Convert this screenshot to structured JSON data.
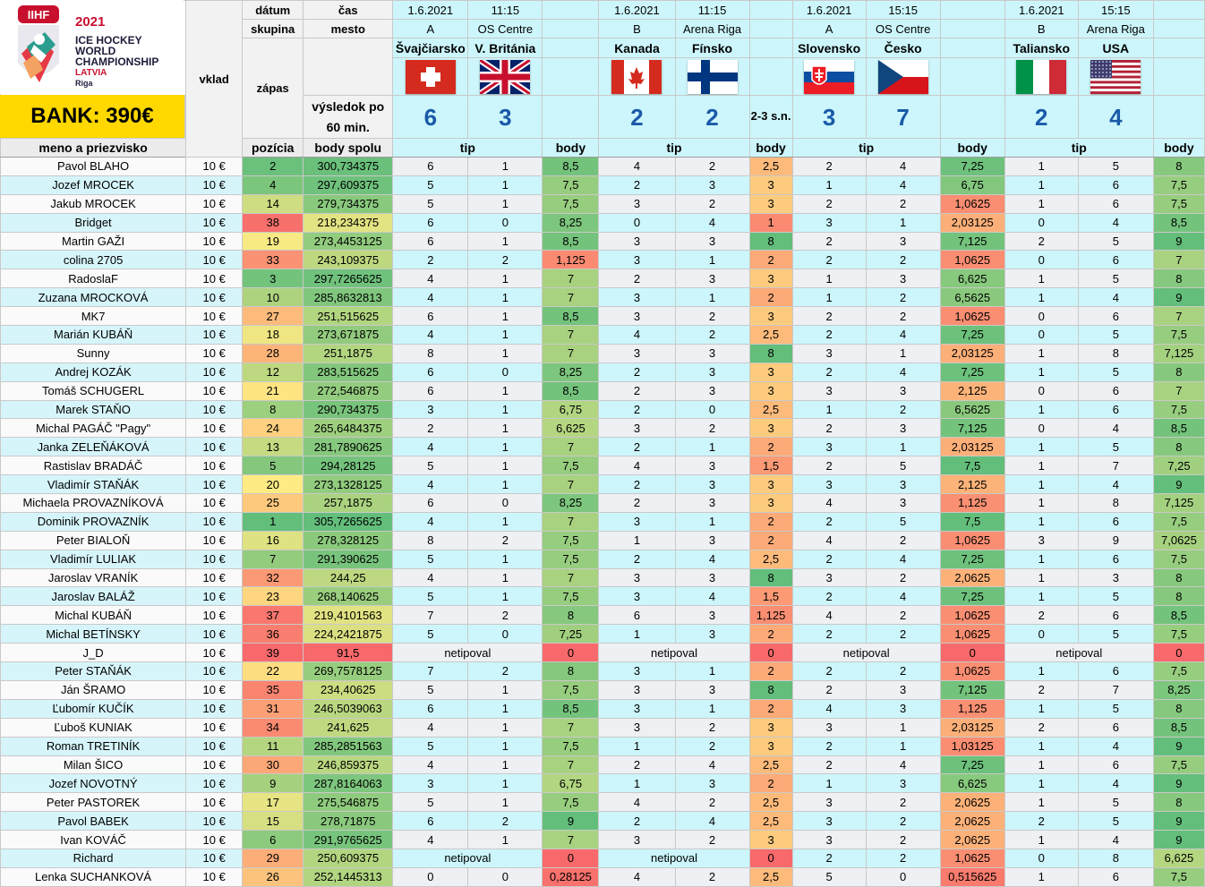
{
  "header": {
    "logo_org": "IIHF",
    "logo_year": "2021",
    "logo_line1": "ICE HOCKEY",
    "logo_line2": "WORLD",
    "logo_line3": "CHAMPIONSHIP",
    "logo_country": "LATVIA",
    "logo_city": "Riga",
    "bank": "BANK: 390€",
    "vklad": "vklad",
    "zapas": "zápas",
    "datum": "dátum",
    "skupina": "skupina",
    "cas": "čas",
    "mesto": "mesto",
    "vysledok": "výsledok po 60 min."
  },
  "games": [
    {
      "date": "1.6.2021",
      "time": "11:15",
      "group": "A",
      "venue": "OS Centre",
      "home": "Švajčiarsko",
      "away": "V. Británia",
      "home_flag": "flag-switzerland",
      "away_flag": "flag-united-kingdom",
      "home_score": "6",
      "away_score": "3",
      "note": ""
    },
    {
      "date": "1.6.2021",
      "time": "11:15",
      "group": "B",
      "venue": "Arena Riga",
      "home": "Kanada",
      "away": "Fínsko",
      "home_flag": "flag-canada",
      "away_flag": "flag-finland",
      "home_score": "2",
      "away_score": "2",
      "note": "2-3 s.n."
    },
    {
      "date": "1.6.2021",
      "time": "15:15",
      "group": "A",
      "venue": "OS Centre",
      "home": "Slovensko",
      "away": "Česko",
      "home_flag": "flag-slovakia",
      "away_flag": "flag-czechia",
      "home_score": "3",
      "away_score": "7",
      "note": ""
    },
    {
      "date": "1.6.2021",
      "time": "15:15",
      "group": "B",
      "venue": "Arena Riga",
      "home": "Taliansko",
      "away": "USA",
      "home_flag": "flag-italy",
      "away_flag": "flag-usa",
      "home_score": "2",
      "away_score": "4",
      "note": ""
    }
  ],
  "columns": {
    "name": "meno a priezvisko",
    "vklad": "10 €",
    "pozicia": "pozícia",
    "body_spolu": "body spolu",
    "tip": "tip",
    "body": "body"
  },
  "colors": {
    "header_cyan": "#ccf6fb",
    "bank_yellow": "#ffd800",
    "score_blue": "#1a5aa8",
    "scale_low": "#f8696b",
    "scale_mid": "#ffeb84",
    "scale_high": "#63be7b"
  },
  "no_tip_label": "netipoval",
  "rows": [
    {
      "name": "Pavol BLAHO",
      "vklad": "10 €",
      "pos": "2",
      "total": "300,734375",
      "g": [
        [
          "6",
          "1",
          "8,5"
        ],
        [
          "4",
          "2",
          "2,5"
        ],
        [
          "2",
          "4",
          "7,25"
        ],
        [
          "1",
          "5",
          "8"
        ]
      ]
    },
    {
      "name": "Jozef MROCEK",
      "vklad": "10 €",
      "pos": "4",
      "total": "297,609375",
      "g": [
        [
          "5",
          "1",
          "7,5"
        ],
        [
          "2",
          "3",
          "3"
        ],
        [
          "1",
          "4",
          "6,75"
        ],
        [
          "1",
          "6",
          "7,5"
        ]
      ]
    },
    {
      "name": "Jakub MROCEK",
      "vklad": "10 €",
      "pos": "14",
      "total": "279,734375",
      "g": [
        [
          "5",
          "1",
          "7,5"
        ],
        [
          "3",
          "2",
          "3"
        ],
        [
          "2",
          "2",
          "1,0625"
        ],
        [
          "1",
          "6",
          "7,5"
        ]
      ]
    },
    {
      "name": "Bridget",
      "vklad": "10 €",
      "pos": "38",
      "total": "218,234375",
      "g": [
        [
          "6",
          "0",
          "8,25"
        ],
        [
          "0",
          "4",
          "1"
        ],
        [
          "3",
          "1",
          "2,03125"
        ],
        [
          "0",
          "4",
          "8,5"
        ]
      ]
    },
    {
      "name": "Martin GAŽI",
      "vklad": "10 €",
      "pos": "19",
      "total": "273,4453125",
      "g": [
        [
          "6",
          "1",
          "8,5"
        ],
        [
          "3",
          "3",
          "8"
        ],
        [
          "2",
          "3",
          "7,125"
        ],
        [
          "2",
          "5",
          "9"
        ]
      ]
    },
    {
      "name": "colina 2705",
      "vklad": "10 €",
      "pos": "33",
      "total": "243,109375",
      "g": [
        [
          "2",
          "2",
          "1,125"
        ],
        [
          "3",
          "1",
          "2"
        ],
        [
          "2",
          "2",
          "1,0625"
        ],
        [
          "0",
          "6",
          "7"
        ]
      ]
    },
    {
      "name": "RadoslaF",
      "vklad": "10 €",
      "pos": "3",
      "total": "297,7265625",
      "g": [
        [
          "4",
          "1",
          "7"
        ],
        [
          "2",
          "3",
          "3"
        ],
        [
          "1",
          "3",
          "6,625"
        ],
        [
          "1",
          "5",
          "8"
        ]
      ]
    },
    {
      "name": "Zuzana MROCKOVÁ",
      "vklad": "10 €",
      "pos": "10",
      "total": "285,8632813",
      "g": [
        [
          "4",
          "1",
          "7"
        ],
        [
          "3",
          "1",
          "2"
        ],
        [
          "1",
          "2",
          "6,5625"
        ],
        [
          "1",
          "4",
          "9"
        ]
      ]
    },
    {
      "name": "MK7",
      "vklad": "10 €",
      "pos": "27",
      "total": "251,515625",
      "g": [
        [
          "6",
          "1",
          "8,5"
        ],
        [
          "3",
          "2",
          "3"
        ],
        [
          "2",
          "2",
          "1,0625"
        ],
        [
          "0",
          "6",
          "7"
        ]
      ]
    },
    {
      "name": "Marián KUBÁŇ",
      "vklad": "10 €",
      "pos": "18",
      "total": "273,671875",
      "g": [
        [
          "4",
          "1",
          "7"
        ],
        [
          "4",
          "2",
          "2,5"
        ],
        [
          "2",
          "4",
          "7,25"
        ],
        [
          "0",
          "5",
          "7,5"
        ]
      ]
    },
    {
      "name": "Sunny",
      "vklad": "10 €",
      "pos": "28",
      "total": "251,1875",
      "g": [
        [
          "8",
          "1",
          "7"
        ],
        [
          "3",
          "3",
          "8"
        ],
        [
          "3",
          "1",
          "2,03125"
        ],
        [
          "1",
          "8",
          "7,125"
        ]
      ]
    },
    {
      "name": "Andrej KOZÁK",
      "vklad": "10 €",
      "pos": "12",
      "total": "283,515625",
      "g": [
        [
          "6",
          "0",
          "8,25"
        ],
        [
          "2",
          "3",
          "3"
        ],
        [
          "2",
          "4",
          "7,25"
        ],
        [
          "1",
          "5",
          "8"
        ]
      ]
    },
    {
      "name": "Tomáš SCHUGERL",
      "vklad": "10 €",
      "pos": "21",
      "total": "272,546875",
      "g": [
        [
          "6",
          "1",
          "8,5"
        ],
        [
          "2",
          "3",
          "3"
        ],
        [
          "3",
          "3",
          "2,125"
        ],
        [
          "0",
          "6",
          "7"
        ]
      ]
    },
    {
      "name": "Marek STAŇO",
      "vklad": "10 €",
      "pos": "8",
      "total": "290,734375",
      "g": [
        [
          "3",
          "1",
          "6,75"
        ],
        [
          "2",
          "0",
          "2,5"
        ],
        [
          "1",
          "2",
          "6,5625"
        ],
        [
          "1",
          "6",
          "7,5"
        ]
      ]
    },
    {
      "name": "Michal PAGÁČ \"Pagy\"",
      "vklad": "10 €",
      "pos": "24",
      "total": "265,6484375",
      "g": [
        [
          "2",
          "1",
          "6,625"
        ],
        [
          "3",
          "2",
          "3"
        ],
        [
          "2",
          "3",
          "7,125"
        ],
        [
          "0",
          "4",
          "8,5"
        ]
      ]
    },
    {
      "name": "Janka ZELEŇÁKOVÁ",
      "vklad": "10 €",
      "pos": "13",
      "total": "281,7890625",
      "g": [
        [
          "4",
          "1",
          "7"
        ],
        [
          "2",
          "1",
          "2"
        ],
        [
          "3",
          "1",
          "2,03125"
        ],
        [
          "1",
          "5",
          "8"
        ]
      ]
    },
    {
      "name": "Rastislav BRADÁČ",
      "vklad": "10 €",
      "pos": "5",
      "total": "294,28125",
      "g": [
        [
          "5",
          "1",
          "7,5"
        ],
        [
          "4",
          "3",
          "1,5"
        ],
        [
          "2",
          "5",
          "7,5"
        ],
        [
          "1",
          "7",
          "7,25"
        ]
      ]
    },
    {
      "name": "Vladimír STAŇÁK",
      "vklad": "10 €",
      "pos": "20",
      "total": "273,1328125",
      "g": [
        [
          "4",
          "1",
          "7"
        ],
        [
          "2",
          "3",
          "3"
        ],
        [
          "3",
          "3",
          "2,125"
        ],
        [
          "1",
          "4",
          "9"
        ]
      ]
    },
    {
      "name": "Michaela PROVAZNÍKOVÁ",
      "vklad": "10 €",
      "pos": "25",
      "total": "257,1875",
      "g": [
        [
          "6",
          "0",
          "8,25"
        ],
        [
          "2",
          "3",
          "3"
        ],
        [
          "4",
          "3",
          "1,125"
        ],
        [
          "1",
          "8",
          "7,125"
        ]
      ]
    },
    {
      "name": "Dominik PROVAZNÍK",
      "vklad": "10 €",
      "pos": "1",
      "total": "305,7265625",
      "g": [
        [
          "4",
          "1",
          "7"
        ],
        [
          "3",
          "1",
          "2"
        ],
        [
          "2",
          "5",
          "7,5"
        ],
        [
          "1",
          "6",
          "7,5"
        ]
      ]
    },
    {
      "name": "Peter BIALOŇ",
      "vklad": "10 €",
      "pos": "16",
      "total": "278,328125",
      "g": [
        [
          "8",
          "2",
          "7,5"
        ],
        [
          "1",
          "3",
          "2"
        ],
        [
          "4",
          "2",
          "1,0625"
        ],
        [
          "3",
          "9",
          "7,0625"
        ]
      ]
    },
    {
      "name": "Vladimír LULIAK",
      "vklad": "10 €",
      "pos": "7",
      "total": "291,390625",
      "g": [
        [
          "5",
          "1",
          "7,5"
        ],
        [
          "2",
          "4",
          "2,5"
        ],
        [
          "2",
          "4",
          "7,25"
        ],
        [
          "1",
          "6",
          "7,5"
        ]
      ]
    },
    {
      "name": "Jaroslav VRANÍK",
      "vklad": "10 €",
      "pos": "32",
      "total": "244,25",
      "g": [
        [
          "4",
          "1",
          "7"
        ],
        [
          "3",
          "3",
          "8"
        ],
        [
          "3",
          "2",
          "2,0625"
        ],
        [
          "1",
          "3",
          "8"
        ]
      ]
    },
    {
      "name": "Jaroslav BALÁŽ",
      "vklad": "10 €",
      "pos": "23",
      "total": "268,140625",
      "g": [
        [
          "5",
          "1",
          "7,5"
        ],
        [
          "3",
          "4",
          "1,5"
        ],
        [
          "2",
          "4",
          "7,25"
        ],
        [
          "1",
          "5",
          "8"
        ]
      ]
    },
    {
      "name": "Michal KUBÁŇ",
      "vklad": "10 €",
      "pos": "37",
      "total": "219,4101563",
      "g": [
        [
          "7",
          "2",
          "8"
        ],
        [
          "6",
          "3",
          "1,125"
        ],
        [
          "4",
          "2",
          "1,0625"
        ],
        [
          "2",
          "6",
          "8,5"
        ]
      ]
    },
    {
      "name": "Michal BETÍNSKY",
      "vklad": "10 €",
      "pos": "36",
      "total": "224,2421875",
      "g": [
        [
          "5",
          "0",
          "7,25"
        ],
        [
          "1",
          "3",
          "2"
        ],
        [
          "2",
          "2",
          "1,0625"
        ],
        [
          "0",
          "5",
          "7,5"
        ]
      ]
    },
    {
      "name": "J_D",
      "vklad": "10 €",
      "pos": "39",
      "total": "91,5",
      "g": [
        [
          "netipoval",
          "",
          "0"
        ],
        [
          "netipoval",
          "",
          "0"
        ],
        [
          "netipoval",
          "",
          "0"
        ],
        [
          "netipoval",
          "",
          "0"
        ]
      ]
    },
    {
      "name": "Peter STAŇÁK",
      "vklad": "10 €",
      "pos": "22",
      "total": "269,7578125",
      "g": [
        [
          "7",
          "2",
          "8"
        ],
        [
          "3",
          "1",
          "2"
        ],
        [
          "2",
          "2",
          "1,0625"
        ],
        [
          "1",
          "6",
          "7,5"
        ]
      ]
    },
    {
      "name": "Ján ŠRAMO",
      "vklad": "10 €",
      "pos": "35",
      "total": "234,40625",
      "g": [
        [
          "5",
          "1",
          "7,5"
        ],
        [
          "3",
          "3",
          "8"
        ],
        [
          "2",
          "3",
          "7,125"
        ],
        [
          "2",
          "7",
          "8,25"
        ]
      ]
    },
    {
      "name": "Ľubomír KUČÍK",
      "vklad": "10 €",
      "pos": "31",
      "total": "246,5039063",
      "g": [
        [
          "6",
          "1",
          "8,5"
        ],
        [
          "3",
          "1",
          "2"
        ],
        [
          "4",
          "3",
          "1,125"
        ],
        [
          "1",
          "5",
          "8"
        ]
      ]
    },
    {
      "name": "Ľuboš KUNIAK",
      "vklad": "10 €",
      "pos": "34",
      "total": "241,625",
      "g": [
        [
          "4",
          "1",
          "7"
        ],
        [
          "3",
          "2",
          "3"
        ],
        [
          "3",
          "1",
          "2,03125"
        ],
        [
          "2",
          "6",
          "8,5"
        ]
      ]
    },
    {
      "name": "Roman TRETINÍK",
      "vklad": "10 €",
      "pos": "11",
      "total": "285,2851563",
      "g": [
        [
          "5",
          "1",
          "7,5"
        ],
        [
          "1",
          "2",
          "3"
        ],
        [
          "2",
          "1",
          "1,03125"
        ],
        [
          "1",
          "4",
          "9"
        ]
      ]
    },
    {
      "name": "Milan ŠICO",
      "vklad": "10 €",
      "pos": "30",
      "total": "246,859375",
      "g": [
        [
          "4",
          "1",
          "7"
        ],
        [
          "2",
          "4",
          "2,5"
        ],
        [
          "2",
          "4",
          "7,25"
        ],
        [
          "1",
          "6",
          "7,5"
        ]
      ]
    },
    {
      "name": "Jozef NOVOTNÝ",
      "vklad": "10 €",
      "pos": "9",
      "total": "287,8164063",
      "g": [
        [
          "3",
          "1",
          "6,75"
        ],
        [
          "1",
          "3",
          "2"
        ],
        [
          "1",
          "3",
          "6,625"
        ],
        [
          "1",
          "4",
          "9"
        ]
      ]
    },
    {
      "name": "Peter PASTOREK",
      "vklad": "10 €",
      "pos": "17",
      "total": "275,546875",
      "g": [
        [
          "5",
          "1",
          "7,5"
        ],
        [
          "4",
          "2",
          "2,5"
        ],
        [
          "3",
          "2",
          "2,0625"
        ],
        [
          "1",
          "5",
          "8"
        ]
      ]
    },
    {
      "name": "Pavol BABEK",
      "vklad": "10 €",
      "pos": "15",
      "total": "278,71875",
      "g": [
        [
          "6",
          "2",
          "9"
        ],
        [
          "2",
          "4",
          "2,5"
        ],
        [
          "3",
          "2",
          "2,0625"
        ],
        [
          "2",
          "5",
          "9"
        ]
      ]
    },
    {
      "name": "Ivan KOVÁČ",
      "vklad": "10 €",
      "pos": "6",
      "total": "291,9765625",
      "g": [
        [
          "4",
          "1",
          "7"
        ],
        [
          "3",
          "2",
          "3"
        ],
        [
          "3",
          "2",
          "2,0625"
        ],
        [
          "1",
          "4",
          "9"
        ]
      ]
    },
    {
      "name": "Richard",
      "vklad": "10 €",
      "pos": "29",
      "total": "250,609375",
      "g": [
        [
          "netipoval",
          "",
          "0"
        ],
        [
          "netipoval",
          "",
          "0"
        ],
        [
          "2",
          "2",
          "1,0625"
        ],
        [
          "0",
          "8",
          "6,625"
        ]
      ]
    },
    {
      "name": "Lenka SUCHANKOVÁ",
      "vklad": "10 €",
      "pos": "26",
      "total": "252,1445313",
      "g": [
        [
          "0",
          "0",
          "0,28125"
        ],
        [
          "4",
          "2",
          "2,5"
        ],
        [
          "5",
          "0",
          "0,515625"
        ],
        [
          "1",
          "6",
          "7,5"
        ]
      ]
    }
  ]
}
